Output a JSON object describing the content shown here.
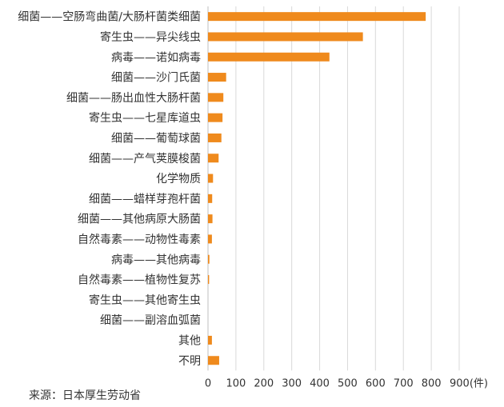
{
  "source_note": "来源：日本厚生劳动省",
  "chart_data": {
    "type": "bar",
    "orientation": "horizontal",
    "categories": [
      "细菌——空肠弯曲菌/大肠杆菌类细菌",
      "寄生虫——异尖线虫",
      "病毒——诺如病毒",
      "细菌——沙门氏菌",
      "细菌——肠出血性大肠杆菌",
      "寄生虫——七星库道虫",
      "细菌——葡萄球菌",
      "细菌——产气荚膜梭菌",
      "化学物质",
      "细菌——蜡样芽孢杆菌",
      "细菌——其他病原大肠菌",
      "自然毒素——动物性毒素",
      "病毒——其他病毒",
      "自然毒素——植物性复苏",
      "寄生虫——其他寄生虫",
      "细菌——副溶血弧菌",
      "其他",
      "不明"
    ],
    "values": [
      780,
      555,
      435,
      65,
      55,
      52,
      48,
      38,
      18,
      15,
      16,
      14,
      5,
      4,
      0,
      0,
      14,
      40
    ],
    "xlim": [
      0,
      900
    ],
    "xticks": [
      0,
      100,
      200,
      300,
      400,
      500,
      600,
      700,
      800,
      900
    ],
    "xunit": "(件)",
    "grid": true,
    "bar_color": "#ef8a1d",
    "grid_color": "#d9d9d9"
  }
}
